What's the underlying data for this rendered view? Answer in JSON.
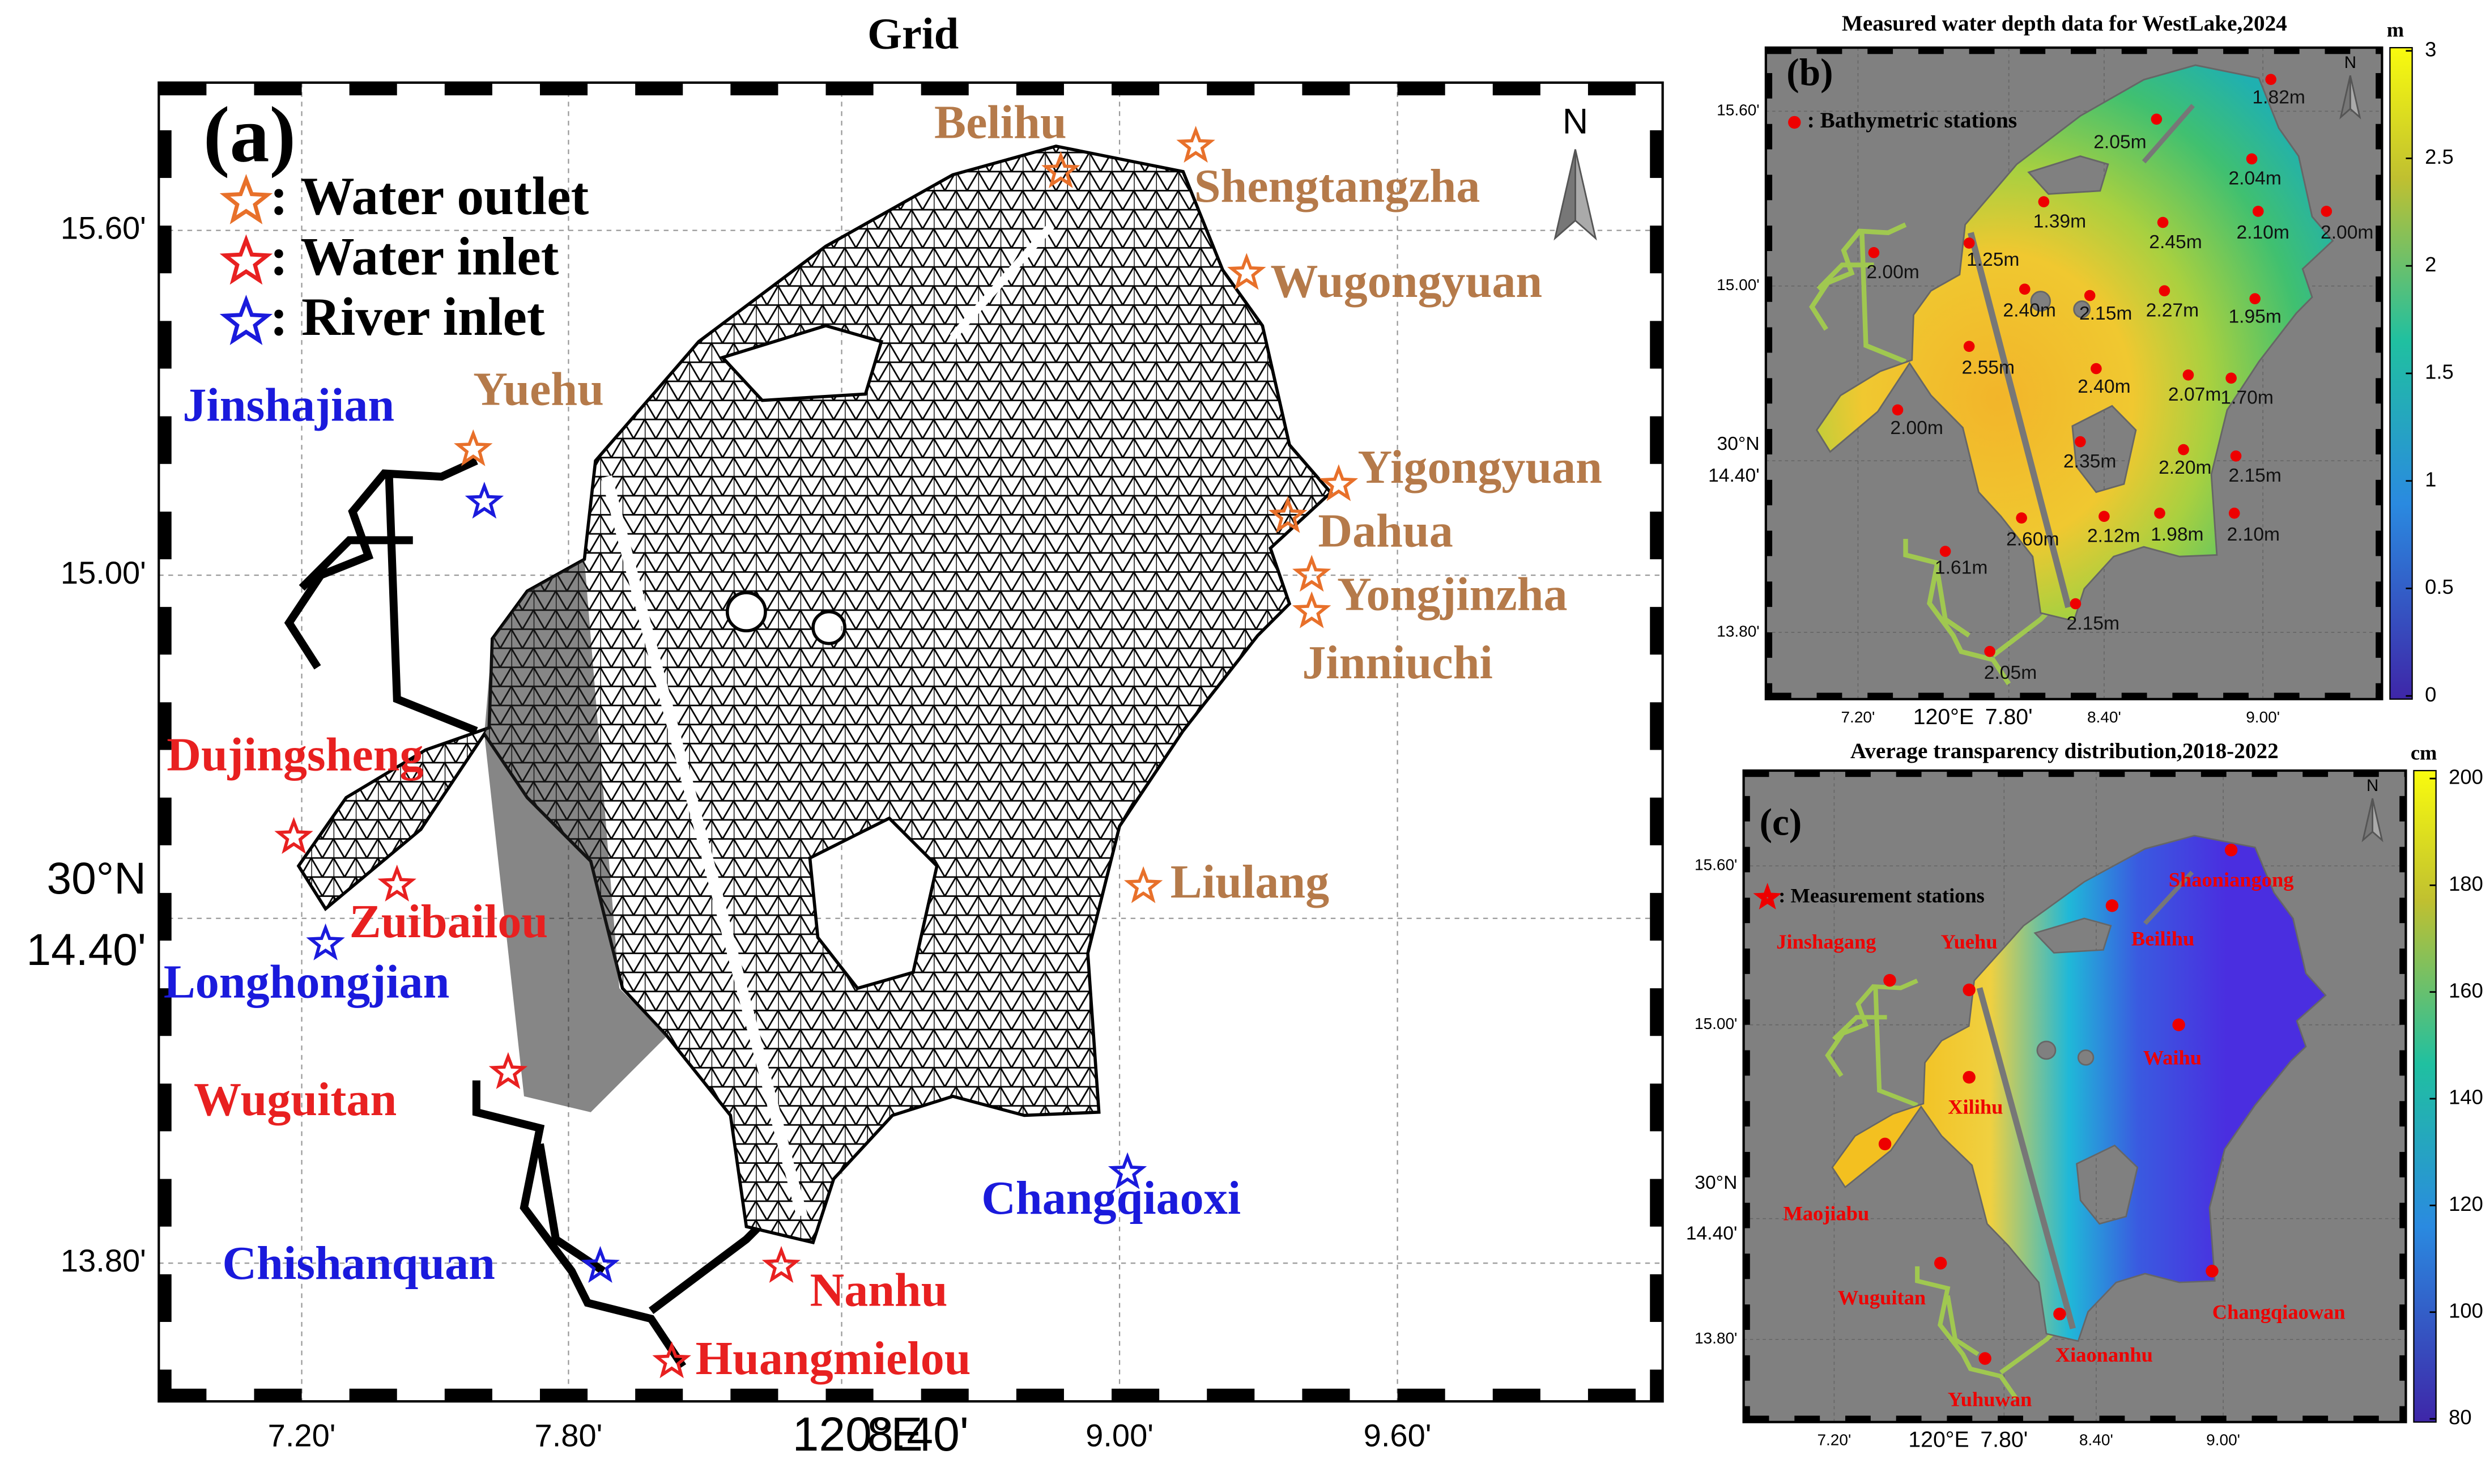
{
  "panel_a": {
    "title": "Grid",
    "label": "(a)",
    "north": "N",
    "legend": [
      ": Water outlet",
      ": Water inlet",
      ": River inlet"
    ],
    "xlabel": "120°E",
    "xticks": [
      "7.20'",
      "7.80'",
      "8.40'",
      "9.00'",
      "9.60'"
    ],
    "ylabel": "30°N",
    "yticks": [
      "15.60'",
      "15.00'",
      "14.40'",
      "13.80'"
    ],
    "sites": [
      {
        "name": "Belihu",
        "kind": "outlet"
      },
      {
        "name": "Shengtangzha",
        "kind": "outlet"
      },
      {
        "name": "Wugongyuan",
        "kind": "outlet"
      },
      {
        "name": "Yuehu",
        "kind": "outlet"
      },
      {
        "name": "Yigongyuan",
        "kind": "outlet"
      },
      {
        "name": "Dahua",
        "kind": "outlet"
      },
      {
        "name": "Yongjinzha",
        "kind": "outlet"
      },
      {
        "name": "Jinniuchi",
        "kind": "outlet"
      },
      {
        "name": "Liulang",
        "kind": "outlet"
      },
      {
        "name": "Dujingsheng",
        "kind": "inlet"
      },
      {
        "name": "Zuibailou",
        "kind": "inlet"
      },
      {
        "name": "Wuguitan",
        "kind": "inlet"
      },
      {
        "name": "Nanhu",
        "kind": "inlet"
      },
      {
        "name": "Huangmielou",
        "kind": "inlet"
      },
      {
        "name": "Jinshajian",
        "kind": "river"
      },
      {
        "name": "Longhongjian",
        "kind": "river"
      },
      {
        "name": "Chishanquan",
        "kind": "river"
      },
      {
        "name": "Changqiaoxi",
        "kind": "river"
      }
    ]
  },
  "panel_b": {
    "title": "Measured water depth data for WestLake,2024",
    "label": "(b)",
    "north": "N",
    "unit": "m",
    "legend": ": Bathymetric stations",
    "colorbar_ticks": [
      0,
      0.5,
      1,
      1.5,
      2,
      2.5,
      3
    ],
    "xlabel": "120°E",
    "xticks": [
      "7.20'",
      "7.80'",
      "8.40'",
      "9.00'"
    ],
    "ylabel": "30°N",
    "yticks": [
      "15.60'",
      "15.00'",
      "14.40'",
      "13.80'"
    ],
    "stations": [
      "2.05m",
      "1.82m",
      "2.04m",
      "1.39m",
      "2.45m",
      "2.10m",
      "2.00m",
      "1.25m",
      "2.00m",
      "2.40m",
      "2.15m",
      "2.27m",
      "1.95m",
      "2.55m",
      "2.40m",
      "2.07m",
      "1.70m",
      "2.00m",
      "2.35m",
      "2.20m",
      "2.15m",
      "2.60m",
      "2.12m",
      "1.98m",
      "2.10m",
      "1.61m",
      "2.15m",
      "2.05m"
    ]
  },
  "panel_c": {
    "title": "Average transparency distribution,2018-2022",
    "label": "(c)",
    "north": "N",
    "unit": "cm",
    "legend": ": Measurement stations",
    "colorbar_ticks": [
      80,
      100,
      120,
      140,
      160,
      180,
      200
    ],
    "xlabel": "120°E",
    "xticks": [
      "7.20'",
      "7.80'",
      "8.40'",
      "9.00'"
    ],
    "ylabel": "30°N",
    "yticks": [
      "15.60'",
      "15.00'",
      "14.40'",
      "13.80'"
    ],
    "stations": [
      "Shaoniangong",
      "Beilihu",
      "Jinshagang",
      "Yuehu",
      "Waihu",
      "Xilihu",
      "Maojiabu",
      "Wuguitan",
      "Xiaonanhu",
      "Changqiaowan",
      "Yuhuwan"
    ]
  }
}
